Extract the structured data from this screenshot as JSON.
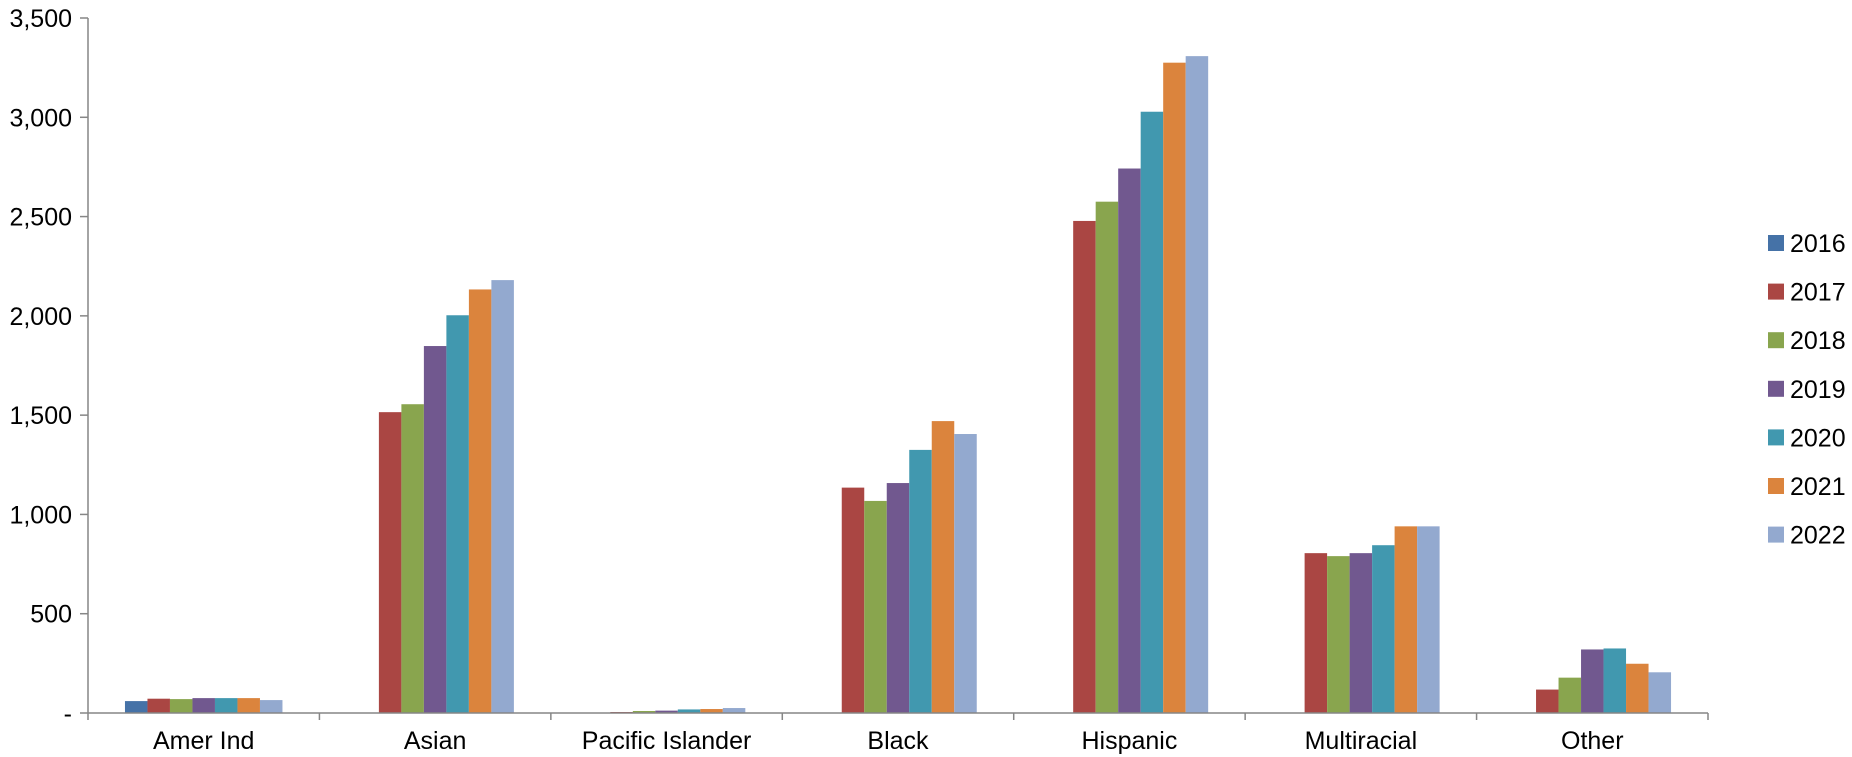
{
  "chart_data": {
    "type": "bar",
    "categories": [
      "Amer Ind",
      "Asian",
      "Pacific Islander",
      "Black",
      "Hispanic",
      "Multiracial",
      "Other"
    ],
    "series": [
      {
        "name": "2016",
        "color": "#4572A7",
        "values": [
          60,
          0,
          0,
          0,
          0,
          0,
          0
        ]
      },
      {
        "name": "2017",
        "color": "#AA4643",
        "values": [
          72,
          1515,
          5,
          1135,
          2478,
          805,
          118
        ]
      },
      {
        "name": "2018",
        "color": "#89A54E",
        "values": [
          70,
          1555,
          10,
          1068,
          2575,
          790,
          178
        ]
      },
      {
        "name": "2019",
        "color": "#71588F",
        "values": [
          75,
          1848,
          12,
          1158,
          2742,
          805,
          320
        ]
      },
      {
        "name": "2020",
        "color": "#4198AF",
        "values": [
          75,
          2003,
          18,
          1325,
          3028,
          845,
          325
        ]
      },
      {
        "name": "2021",
        "color": "#DB843D",
        "values": [
          75,
          2133,
          20,
          1470,
          3275,
          940,
          248
        ]
      },
      {
        "name": "2022",
        "color": "#93A9CF",
        "values": [
          65,
          2180,
          25,
          1405,
          3308,
          940,
          205
        ]
      }
    ],
    "yticks": [
      {
        "value": 3500,
        "label": "3,500"
      },
      {
        "value": 3000,
        "label": "3,000"
      },
      {
        "value": 2500,
        "label": "2,500"
      },
      {
        "value": 2000,
        "label": "2,000"
      },
      {
        "value": 1500,
        "label": "1,500"
      },
      {
        "value": 1000,
        "label": "1,000"
      },
      {
        "value": 500,
        "label": "500"
      },
      {
        "value": 0,
        "label": "-"
      }
    ],
    "ylim": [
      0,
      3500
    ],
    "grid": false,
    "legend_position": "right"
  }
}
